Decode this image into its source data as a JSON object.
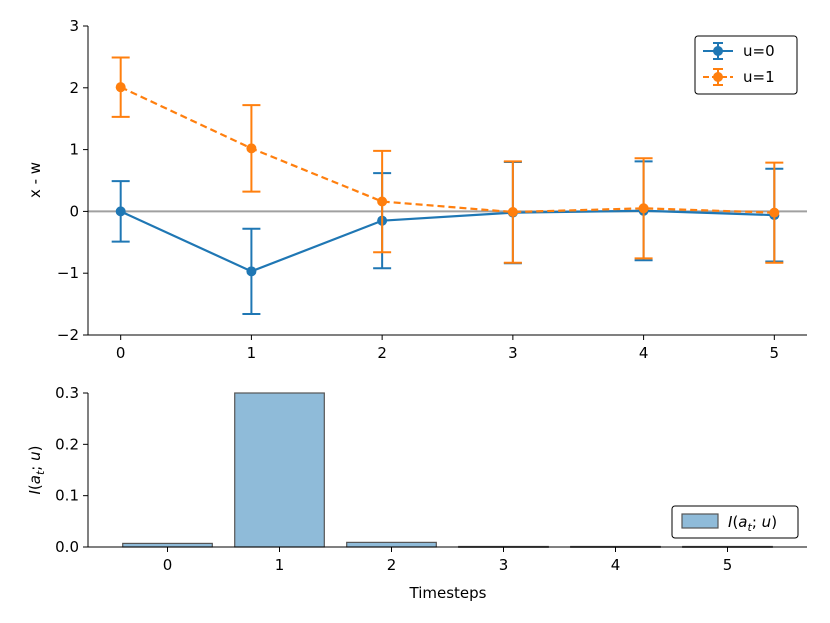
{
  "chart_data": [
    {
      "type": "line",
      "title": "",
      "xlabel": "",
      "ylabel": "x - w",
      "x": [
        0,
        1,
        2,
        3,
        4,
        5
      ],
      "xlim": [
        -0.25,
        5.25
      ],
      "ylim": [
        -2,
        3
      ],
      "xticks": [
        "0",
        "1",
        "2",
        "3",
        "4",
        "5"
      ],
      "yticks": [
        "−2",
        "−1",
        "0",
        "1",
        "2",
        "3"
      ],
      "reference_line": 0,
      "legend_position": "top-right",
      "series": [
        {
          "name": "u=0",
          "color": "#1f77b4",
          "linestyle": "solid",
          "values": [
            0.0,
            -0.97,
            -0.15,
            -0.02,
            0.01,
            -0.06
          ],
          "errors": [
            0.49,
            0.69,
            0.77,
            0.82,
            0.8,
            0.75
          ]
        },
        {
          "name": "u=1",
          "color": "#ff7f0e",
          "linestyle": "dashed",
          "values": [
            2.01,
            1.02,
            0.16,
            -0.01,
            0.05,
            -0.02
          ],
          "errors": [
            0.48,
            0.7,
            0.82,
            0.82,
            0.81,
            0.81
          ]
        }
      ]
    },
    {
      "type": "bar",
      "title": "",
      "xlabel": "Timesteps",
      "ylabel": "I(a_t; u)",
      "categories": [
        "0",
        "1",
        "2",
        "3",
        "4",
        "5"
      ],
      "values": [
        0.007,
        0.3,
        0.009,
        0.001,
        0.001,
        0.001
      ],
      "ylim": [
        0,
        0.3
      ],
      "yticks": [
        "0.0",
        "0.1",
        "0.2",
        "0.3"
      ],
      "legend_label": "I(a_t; u)",
      "legend_position": "bottom-right",
      "bar_color": "#8fbbd9",
      "edge_color": "#555555"
    }
  ]
}
